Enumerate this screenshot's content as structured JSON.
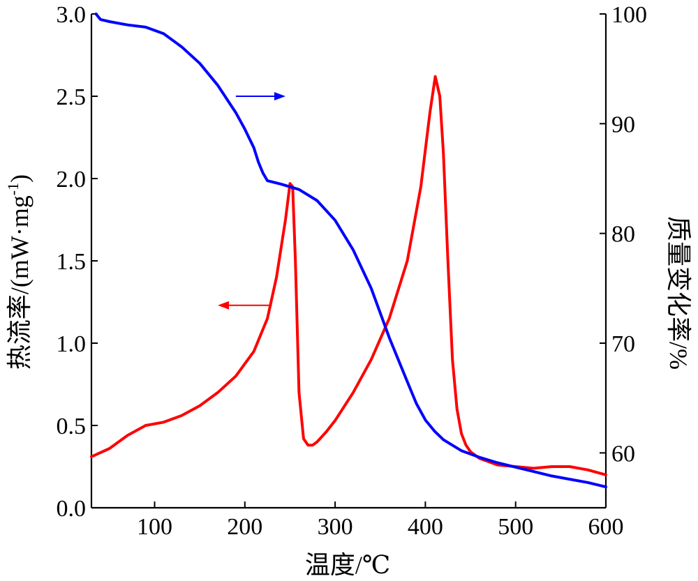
{
  "chart_data": {
    "type": "line",
    "title": "",
    "xlabel": "温度/℃",
    "ylabel_left": "热流率/(mW·mg",
    "ylabel_left_sup": "-1",
    "ylabel_left_end": ")",
    "ylabel_right": "质量变化率/%",
    "xlim": [
      30,
      600
    ],
    "ylim_left": [
      0,
      3.0
    ],
    "ylim_right": [
      55,
      100
    ],
    "x_ticks": [
      100,
      200,
      300,
      400,
      500,
      600
    ],
    "x_tick_labels": [
      "100",
      "200",
      "300",
      "400",
      "500",
      "600"
    ],
    "y_left_ticks": [
      0,
      0.5,
      1.0,
      1.5,
      2.0,
      2.5,
      3.0
    ],
    "y_left_tick_labels": [
      "0.0",
      "0.5",
      "1.0",
      "1.5",
      "2.0",
      "2.5",
      "3.0"
    ],
    "y_right_ticks": [
      60,
      70,
      80,
      90,
      100
    ],
    "y_right_tick_labels": [
      "60",
      "70",
      "80",
      "90",
      "100"
    ],
    "grid": false,
    "series": [
      {
        "axis": "left",
        "color": "#ff0000",
        "x": [
          30,
          50,
          70,
          90,
          110,
          130,
          150,
          170,
          190,
          210,
          225,
          235,
          245,
          250,
          253,
          256,
          260,
          265,
          270,
          275,
          280,
          290,
          300,
          320,
          340,
          360,
          380,
          395,
          405,
          411,
          416,
          420,
          425,
          430,
          435,
          440,
          445,
          450,
          460,
          470,
          480,
          500,
          520,
          540,
          560,
          580,
          600
        ],
        "values": [
          0.31,
          0.36,
          0.44,
          0.5,
          0.52,
          0.56,
          0.62,
          0.7,
          0.8,
          0.95,
          1.15,
          1.4,
          1.75,
          1.97,
          1.95,
          1.5,
          0.7,
          0.42,
          0.38,
          0.38,
          0.4,
          0.46,
          0.53,
          0.7,
          0.9,
          1.15,
          1.5,
          1.95,
          2.4,
          2.62,
          2.5,
          2.15,
          1.5,
          0.9,
          0.6,
          0.45,
          0.38,
          0.34,
          0.3,
          0.28,
          0.26,
          0.25,
          0.24,
          0.25,
          0.25,
          0.23,
          0.2
        ]
      },
      {
        "axis": "right",
        "color": "#0000ff",
        "x": [
          35,
          40,
          50,
          70,
          90,
          110,
          130,
          150,
          170,
          190,
          200,
          210,
          215,
          220,
          225,
          240,
          260,
          280,
          300,
          320,
          340,
          360,
          380,
          390,
          400,
          410,
          420,
          440,
          460,
          480,
          500,
          520,
          540,
          560,
          580,
          600
        ],
        "values": [
          100,
          99.5,
          99.3,
          99.0,
          98.8,
          98.2,
          97.0,
          95.5,
          93.5,
          91.0,
          89.5,
          87.8,
          86.5,
          85.5,
          84.8,
          84.5,
          84.0,
          83.0,
          81.2,
          78.5,
          75.0,
          70.5,
          66.5,
          64.5,
          63.0,
          62.0,
          61.2,
          60.2,
          59.6,
          59.1,
          58.7,
          58.3,
          57.9,
          57.6,
          57.3,
          56.9
        ]
      }
    ],
    "arrows": [
      {
        "color": "#0000ff",
        "direction": "right",
        "x_from": 190,
        "x_to": 245,
        "y_left": 2.5
      },
      {
        "color": "#ff0000",
        "direction": "left",
        "x_from": 230,
        "x_to": 170,
        "y_left": 1.23
      }
    ]
  }
}
